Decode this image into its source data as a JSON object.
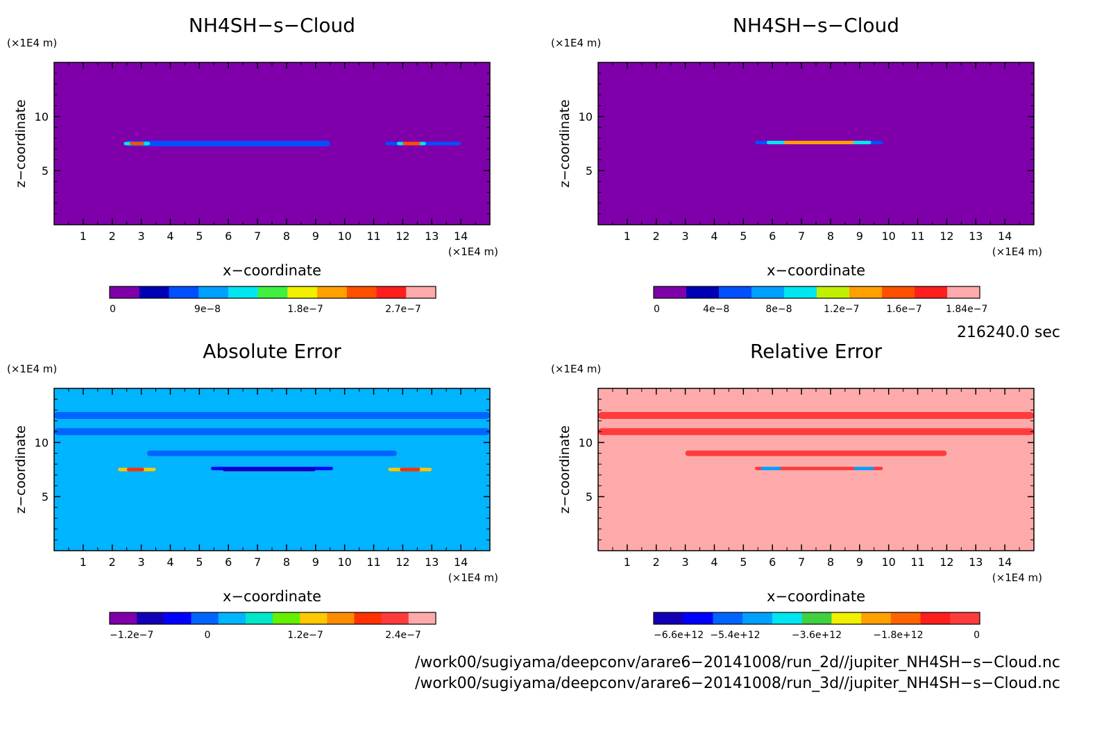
{
  "chart_data": [
    {
      "type": "heatmap",
      "title": "NH4SH−s−Cloud",
      "xlabel": "x−coordinate",
      "ylabel": "z−coordinate",
      "x_unit": "(×1E4 m)",
      "y_unit": "(×1E4 m)",
      "xlim": [
        0,
        15
      ],
      "ylim": [
        0,
        15
      ],
      "x_ticks": [
        "1",
        "2",
        "3",
        "4",
        "5",
        "6",
        "7",
        "8",
        "9",
        "10",
        "11",
        "12",
        "13",
        "14"
      ],
      "y_ticks": [
        "5",
        "10"
      ],
      "background_color": "#7f00aa",
      "colorbar": {
        "tick_labels": [
          "0",
          "9e−8",
          "1.8e−7",
          "2.7e−7"
        ],
        "colors": [
          "#7f00aa",
          "#0000b4",
          "#0050ff",
          "#00a0ff",
          "#00e6f0",
          "#40f040",
          "#f0f000",
          "#ffa000",
          "#ff5000",
          "#ff1e1e",
          "#ffaaaa"
        ]
      },
      "features": [
        {
          "x_start": 2.5,
          "x_end": 9.5,
          "z": 7.5,
          "color": "#0050ff"
        },
        {
          "x_start": 11.4,
          "x_end": 14.0,
          "z": 7.5,
          "color": "#0050ff"
        },
        {
          "x_start": 2.4,
          "x_end": 3.3,
          "z": 7.5,
          "color": "#00e6f0"
        },
        {
          "x_start": 2.6,
          "x_end": 3.1,
          "z": 7.5,
          "color": "#ff5000"
        },
        {
          "x_start": 11.8,
          "x_end": 12.8,
          "z": 7.5,
          "color": "#00e6f0"
        },
        {
          "x_start": 12.0,
          "x_end": 12.6,
          "z": 7.5,
          "color": "#ff5000"
        }
      ]
    },
    {
      "type": "heatmap",
      "title": "NH4SH−s−Cloud",
      "xlabel": "x−coordinate",
      "ylabel": "z−coordinate",
      "x_unit": "(×1E4 m)",
      "y_unit": "(×1E4 m)",
      "xlim": [
        0,
        15
      ],
      "ylim": [
        0,
        15
      ],
      "x_ticks": [
        "1",
        "2",
        "3",
        "4",
        "5",
        "6",
        "7",
        "8",
        "9",
        "10",
        "11",
        "12",
        "13",
        "14"
      ],
      "y_ticks": [
        "5",
        "10"
      ],
      "background_color": "#7f00aa",
      "colorbar": {
        "tick_labels": [
          "0",
          "4e−8",
          "8e−8",
          "1.2e−7",
          "1.6e−7",
          "1.84e−7"
        ],
        "colors": [
          "#7f00aa",
          "#0000b4",
          "#0050ff",
          "#00a0ff",
          "#00e6f0",
          "#c0f000",
          "#ffa000",
          "#ff5000",
          "#ff1e1e",
          "#ffaaaa"
        ]
      },
      "features": [
        {
          "x_start": 5.4,
          "x_end": 9.8,
          "z": 7.6,
          "color": "#0050ff"
        },
        {
          "x_start": 5.8,
          "x_end": 9.4,
          "z": 7.6,
          "color": "#00e6f0"
        },
        {
          "x_start": 6.4,
          "x_end": 8.8,
          "z": 7.6,
          "color": "#ffa000"
        }
      ]
    },
    {
      "type": "heatmap",
      "title": "Absolute Error",
      "xlabel": "x−coordinate",
      "ylabel": "z−coordinate",
      "x_unit": "(×1E4 m)",
      "y_unit": "(×1E4 m)",
      "xlim": [
        0,
        15
      ],
      "ylim": [
        0,
        15
      ],
      "x_ticks": [
        "1",
        "2",
        "3",
        "4",
        "5",
        "6",
        "7",
        "8",
        "9",
        "10",
        "11",
        "12",
        "13",
        "14"
      ],
      "y_ticks": [
        "5",
        "10"
      ],
      "background_color": "#00b4ff",
      "colorbar": {
        "tick_labels": [
          "−1.2e−7",
          "0",
          "1.2e−7",
          "2.4e−7"
        ],
        "colors": [
          "#7f00aa",
          "#1400b4",
          "#0000ff",
          "#0064ff",
          "#00b4ff",
          "#00e6c8",
          "#64f000",
          "#ffc800",
          "#ff8c00",
          "#ff3200",
          "#ff3c3c",
          "#ffaaaa"
        ]
      },
      "features": [
        {
          "x_start": 0.0,
          "x_end": 15.0,
          "z": 12.5,
          "color": "#0064ff"
        },
        {
          "x_start": 0.0,
          "x_end": 15.0,
          "z": 11.0,
          "color": "#0064ff"
        },
        {
          "x_start": 3.2,
          "x_end": 11.8,
          "z": 9.0,
          "color": "#0064ff"
        },
        {
          "x_start": 5.4,
          "x_end": 9.6,
          "z": 7.6,
          "color": "#0000ff"
        },
        {
          "x_start": 5.8,
          "x_end": 9.0,
          "z": 7.5,
          "color": "#1400b4"
        },
        {
          "x_start": 2.2,
          "x_end": 3.5,
          "z": 7.5,
          "color": "#ffc800"
        },
        {
          "x_start": 2.5,
          "x_end": 3.1,
          "z": 7.5,
          "color": "#ff3200"
        },
        {
          "x_start": 11.5,
          "x_end": 13.0,
          "z": 7.5,
          "color": "#ffc800"
        },
        {
          "x_start": 11.9,
          "x_end": 12.6,
          "z": 7.5,
          "color": "#ff3200"
        }
      ]
    },
    {
      "type": "heatmap",
      "title": "Relative Error",
      "xlabel": "x−coordinate",
      "ylabel": "z−coordinate",
      "x_unit": "(×1E4 m)",
      "y_unit": "(×1E4 m)",
      "xlim": [
        0,
        15
      ],
      "ylim": [
        0,
        15
      ],
      "x_ticks": [
        "1",
        "2",
        "3",
        "4",
        "5",
        "6",
        "7",
        "8",
        "9",
        "10",
        "11",
        "12",
        "13",
        "14"
      ],
      "y_ticks": [
        "5",
        "10"
      ],
      "background_color": "#ffaaaa",
      "colorbar": {
        "tick_labels": [
          "−6.6e+12",
          "−5.4e+12",
          "−3.6e+12",
          "−1.8e+12",
          "0"
        ],
        "colors": [
          "#1400b4",
          "#0000ff",
          "#0064ff",
          "#00a0ff",
          "#00e6f0",
          "#40d040",
          "#f0f000",
          "#ffa000",
          "#ff6400",
          "#ff1e1e",
          "#ff3c3c"
        ]
      },
      "features": [
        {
          "x_start": 0.0,
          "x_end": 15.0,
          "z": 12.5,
          "color": "#ff3c3c"
        },
        {
          "x_start": 0.0,
          "x_end": 15.0,
          "z": 11.0,
          "color": "#ff3c3c"
        },
        {
          "x_start": 3.0,
          "x_end": 12.0,
          "z": 9.0,
          "color": "#ff3c3c"
        },
        {
          "x_start": 5.4,
          "x_end": 9.8,
          "z": 7.6,
          "color": "#ff3c3c"
        },
        {
          "x_start": 5.6,
          "x_end": 6.3,
          "z": 7.6,
          "color": "#00a0ff"
        },
        {
          "x_start": 8.8,
          "x_end": 9.5,
          "z": 7.6,
          "color": "#00a0ff"
        }
      ]
    }
  ],
  "footer": {
    "time": "216240.0 sec",
    "path_2d": "/work00/sugiyama/deepconv/arare6−20141008/run_2d//jupiter_NH4SH−s−Cloud.nc",
    "path_3d": "/work00/sugiyama/deepconv/arare6−20141008/run_3d//jupiter_NH4SH−s−Cloud.nc"
  }
}
